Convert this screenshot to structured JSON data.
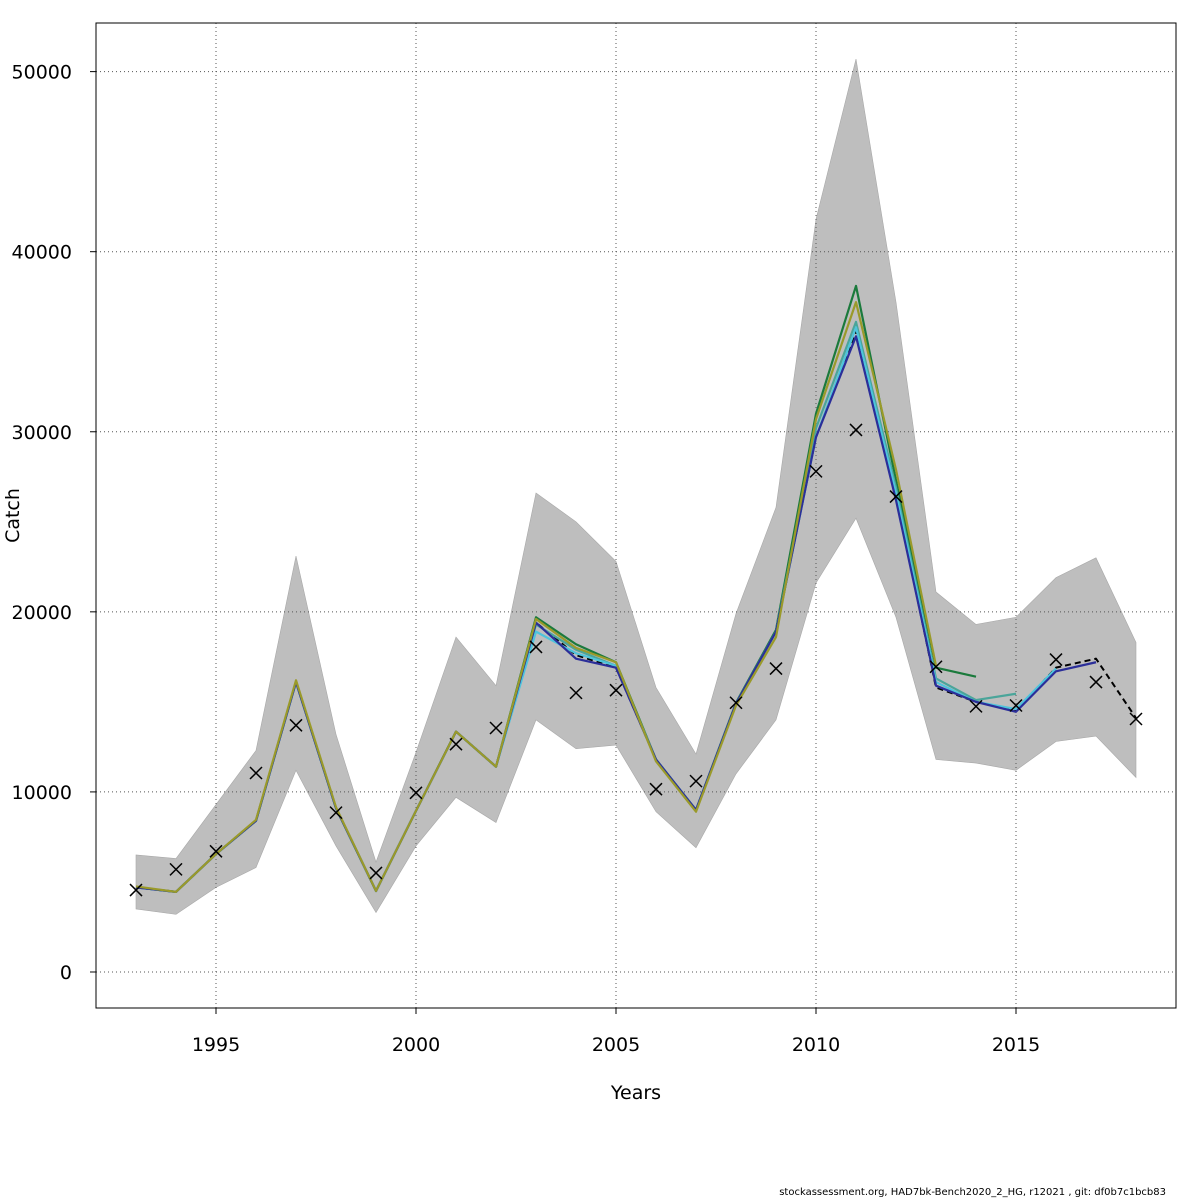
{
  "footer": "stockassessment.org, HAD7bk-Bench2020_2_HG, r12021 , git: df0b7c1bcb83",
  "chart_data": {
    "type": "line",
    "title": "",
    "xlabel": "Years",
    "ylabel": "Catch",
    "xlim": [
      1992,
      2019
    ],
    "ylim": [
      -2000,
      52700
    ],
    "grid": true,
    "x_ticks": [
      1995,
      2000,
      2005,
      2010,
      2015
    ],
    "y_ticks": [
      0,
      10000,
      20000,
      30000,
      40000,
      50000
    ],
    "colors": {
      "band": "#bebebe",
      "observed": "#000000",
      "retro_colors": [
        "#1b7a3c",
        "#4aa59a",
        "#4ec4dc",
        "#2b2e99",
        "#9a9a2a"
      ]
    },
    "band": {
      "x": [
        1993,
        1994,
        1995,
        1996,
        1997,
        1998,
        1999,
        2000,
        2001,
        2002,
        2003,
        2004,
        2005,
        2006,
        2007,
        2008,
        2009,
        2010,
        2011,
        2012,
        2013,
        2014,
        2015,
        2016,
        2017,
        2018
      ],
      "upper": [
        6500,
        6300,
        9300,
        12300,
        23100,
        13200,
        6100,
        12200,
        18600,
        15900,
        26600,
        25000,
        22800,
        15800,
        12100,
        19900,
        25800,
        41800,
        50700,
        37200,
        21100,
        19300,
        19700,
        21900,
        23000,
        18300
      ],
      "lower": [
        3500,
        3200,
        4700,
        5800,
        11200,
        7000,
        3300,
        7000,
        9700,
        8300,
        14000,
        12400,
        12600,
        8900,
        6900,
        11000,
        14000,
        21600,
        25200,
        19700,
        11800,
        11600,
        11200,
        12800,
        13100,
        10800
      ]
    },
    "observed": {
      "x": [
        1993,
        1994,
        1995,
        1996,
        1997,
        1998,
        1999,
        2000,
        2001,
        2002,
        2003,
        2004,
        2005,
        2006,
        2007,
        2008,
        2009,
        2010,
        2011,
        2012,
        2013,
        2014,
        2015,
        2016,
        2017,
        2018
      ],
      "y": [
        4550,
        5700,
        6700,
        11050,
        13700,
        8850,
        5500,
        9950,
        12650,
        13550,
        18050,
        15500,
        15650,
        10150,
        10600,
        14950,
        16850,
        27800,
        30100,
        26400,
        16950,
        14750,
        14800,
        17350,
        16100,
        14050
      ]
    },
    "series": [
      {
        "x": [
          1993,
          1994,
          1995,
          1996,
          1997,
          1998,
          1999,
          2000,
          2001,
          2002,
          2003,
          2004,
          2005,
          2006,
          2007,
          2008,
          2009,
          2010,
          2011,
          2012,
          2013,
          2014,
          2015,
          2016,
          2017,
          2018
        ],
        "values": [
          4700,
          4450,
          6550,
          8400,
          16100,
          9100,
          4500,
          8950,
          13350,
          11400,
          19400,
          17600,
          16900,
          11800,
          9000,
          14900,
          18900,
          29700,
          35600,
          26400,
          15800,
          15000,
          14500,
          16900,
          17400,
          14100
        ],
        "style": "dashed",
        "color": "#000000"
      },
      {
        "x": [
          1993,
          1994,
          1995,
          1996,
          1997,
          1998,
          1999,
          2000,
          2001,
          2002,
          2003,
          2004,
          2005,
          2006,
          2007,
          2008,
          2009,
          2010,
          2011,
          2012,
          2013,
          2014
        ],
        "values": [
          4700,
          4450,
          6550,
          8400,
          16100,
          9100,
          4500,
          8950,
          13350,
          11400,
          19700,
          18200,
          17200,
          11800,
          9000,
          14950,
          19000,
          31000,
          38100,
          27300,
          16900,
          16400
        ],
        "color": "#1b7a3c"
      },
      {
        "x": [
          1993,
          1994,
          1995,
          1996,
          1997,
          1998,
          1999,
          2000,
          2001,
          2002,
          2003,
          2004,
          2005,
          2006,
          2007,
          2008,
          2009,
          2010,
          2011,
          2012,
          2013,
          2014,
          2015
        ],
        "values": [
          4700,
          4450,
          6550,
          8400,
          16100,
          9100,
          4500,
          8950,
          13350,
          11400,
          19300,
          17900,
          17000,
          11800,
          9000,
          14900,
          18900,
          30200,
          36100,
          26900,
          16300,
          15100,
          15450
        ],
        "color": "#4aa59a"
      },
      {
        "x": [
          1993,
          1994,
          1995,
          1996,
          1997,
          1998,
          1999,
          2000,
          2001,
          2002,
          2003,
          2004,
          2005,
          2006,
          2007,
          2008,
          2009,
          2010,
          2011,
          2012,
          2013,
          2014,
          2015,
          2016
        ],
        "values": [
          4700,
          4450,
          6550,
          8400,
          16100,
          9100,
          4500,
          8950,
          13350,
          11400,
          18900,
          17700,
          17000,
          11800,
          9000,
          14900,
          18900,
          29700,
          35800,
          26600,
          16100,
          15000,
          14600,
          16850
        ],
        "color": "#4ec4dc"
      },
      {
        "x": [
          1993,
          1994,
          1995,
          1996,
          1997,
          1998,
          1999,
          2000,
          2001,
          2002,
          2003,
          2004,
          2005,
          2006,
          2007,
          2008,
          2009,
          2010,
          2011,
          2012,
          2013,
          2014,
          2015,
          2016,
          2017
        ],
        "values": [
          4700,
          4450,
          6550,
          8400,
          16100,
          9100,
          4500,
          8950,
          13350,
          11400,
          19400,
          17400,
          16900,
          11800,
          9000,
          14900,
          18900,
          29700,
          35300,
          26200,
          15900,
          15000,
          14450,
          16700,
          17200
        ],
        "color": "#2b2e99"
      },
      {
        "x": [
          1993,
          1994,
          1995,
          1996,
          1997,
          1998,
          1999,
          2000,
          2001,
          2002,
          2003,
          2004,
          2005,
          2006,
          2007,
          2008,
          2009,
          2010,
          2011,
          2012,
          2013
        ],
        "values": [
          4750,
          4450,
          6550,
          8450,
          16200,
          9150,
          4500,
          8950,
          13350,
          11400,
          19600,
          18000,
          17200,
          11700,
          8900,
          14800,
          18600,
          30700,
          37200,
          27900,
          17000
        ],
        "color": "#9a9a2a"
      }
    ]
  }
}
